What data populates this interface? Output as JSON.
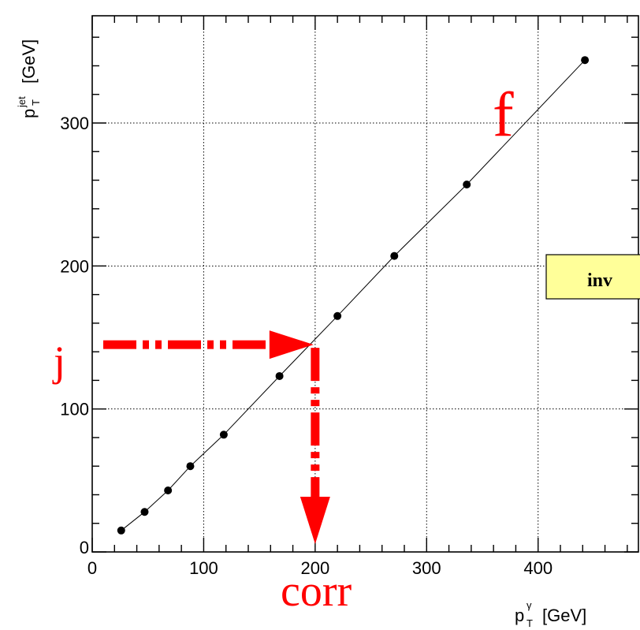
{
  "chart_data": {
    "type": "scatter",
    "title": "",
    "xlabel": "p_T^γ [GeV]",
    "ylabel": "p_T^jet [GeV]",
    "xlabel_main": "p",
    "xlabel_sup": "γ",
    "xlabel_sub": "T",
    "xlabel_unit": "[GeV]",
    "ylabel_main": "p",
    "ylabel_sup": "jet",
    "ylabel_sub": "T",
    "ylabel_unit": "[GeV]",
    "xlim": [
      0,
      490
    ],
    "ylim": [
      0,
      375
    ],
    "grid": true,
    "x_ticks": [
      0,
      100,
      200,
      300,
      400
    ],
    "x_tick_labels": [
      "0",
      "100",
      "200",
      "300",
      "400"
    ],
    "y_ticks": [
      0,
      100,
      200,
      300
    ],
    "y_tick_labels": [
      "0",
      "100",
      "200",
      "300"
    ],
    "series": [
      {
        "x": [
          26,
          47,
          68,
          88,
          118,
          168,
          220,
          271,
          336,
          442
        ],
        "y": [
          15,
          28,
          43,
          60,
          82,
          123,
          165,
          207,
          257,
          344
        ]
      }
    ],
    "fit_curve": {
      "x": [
        26,
        47,
        68,
        88,
        118,
        168,
        220,
        271,
        336,
        442
      ],
      "y": [
        15,
        28,
        43,
        60,
        82,
        123,
        165,
        207,
        257,
        344
      ]
    },
    "annotations": {
      "f_label": "f",
      "j_label": "j",
      "corr_label": "corr",
      "legend_text": "inv",
      "arrow_point": {
        "x": 200,
        "y": 145
      },
      "arrow_color": "#ff0000",
      "legend_fill": "#ffff99"
    }
  }
}
